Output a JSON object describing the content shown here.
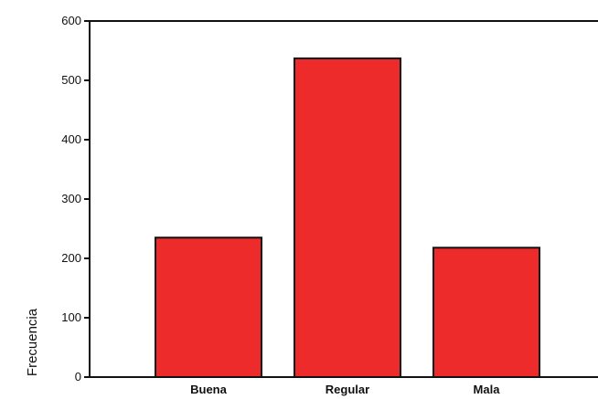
{
  "chart_data": {
    "type": "bar",
    "categories": [
      "Buena",
      "Regular",
      "Mala"
    ],
    "values": [
      235,
      537,
      218
    ],
    "ylabel": "Frecuencia",
    "xlabel": "",
    "ylim": [
      0,
      600
    ],
    "yticks": [
      0,
      100,
      200,
      300,
      400,
      500,
      600
    ],
    "grid": false,
    "bar_color": "#ee2b2b",
    "bar_edge_color": "#111111"
  }
}
